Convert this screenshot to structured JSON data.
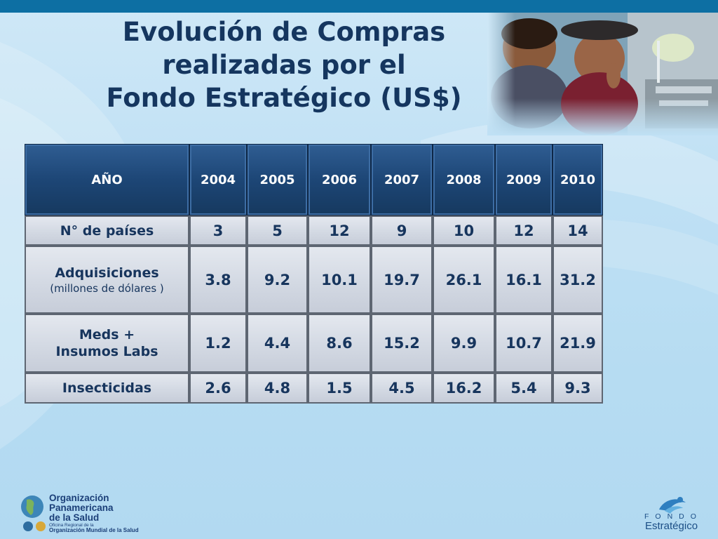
{
  "slide": {
    "title_lines": [
      "Evolución de Compras",
      "realizadas por el",
      "Fondo Estratégico (US$)"
    ]
  },
  "table": {
    "header": [
      "AÑO",
      "2004",
      "2005",
      "2006",
      "2007",
      "2008",
      "2009",
      "2010"
    ],
    "rows": [
      {
        "label": "N° de países",
        "values": [
          "3",
          "5",
          "12",
          "9",
          "10",
          "12",
          "14"
        ]
      },
      {
        "label": "Adquisiciones",
        "sublabel": "(millones de dólares )",
        "values": [
          "3.8",
          "9.2",
          "10.1",
          "19.7",
          "26.1",
          "16.1",
          "31.2"
        ]
      },
      {
        "label": "Meds +",
        "sublabel": "Insumos Labs",
        "values": [
          "1.2",
          "4.4",
          "8.6",
          "15.2",
          "9.9",
          "10.7",
          "21.9"
        ]
      },
      {
        "label": "Insecticidas",
        "values": [
          "2.6",
          "4.8",
          "1.5",
          "4.5",
          "16.2",
          "5.4",
          "9.3"
        ]
      }
    ]
  },
  "logos": {
    "paho": {
      "name_lines": [
        "Organización",
        "Panamericana",
        "de la Salud"
      ],
      "sub_line": "Oficina Regional de la",
      "sub_line2": "Organización Mundial de la Salud"
    },
    "fondo": {
      "word1": "FONDO",
      "word2": "Estratégico"
    }
  },
  "colors": {
    "top_bar": "#0d6fa3",
    "title": "#15365f",
    "header_fill": "#1d4676",
    "cell_fill": "#d3d9e3",
    "cell_text": "#17355d"
  }
}
